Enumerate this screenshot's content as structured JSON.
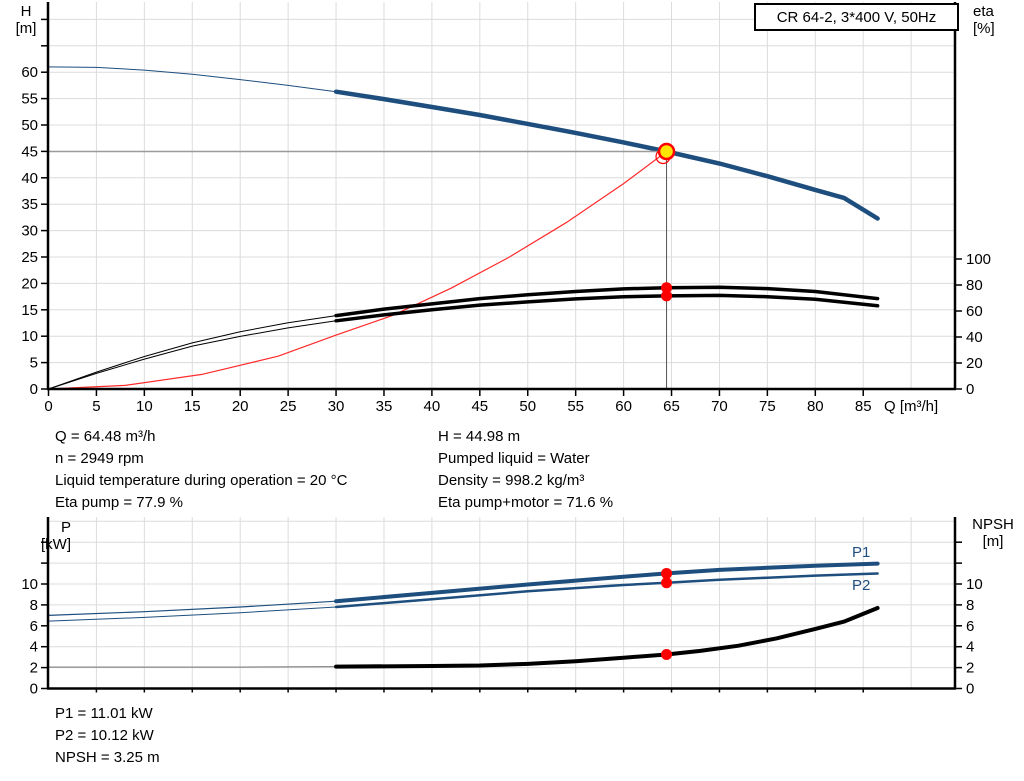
{
  "header": {
    "title": "CR 64-2, 3*400 V, 50Hz"
  },
  "colors": {
    "curve_blue": "#1d4e7e",
    "curve_black": "#000000",
    "system_red": "#ff2a2a",
    "marker_red": "#ff0000",
    "marker_yellow": "#ffe400",
    "grid": "#dcdcdc",
    "axis": "#000000",
    "ref_line": "#9b9b9b",
    "drop_line": "#555555",
    "npsh_thin": "#8a8a8a",
    "label_blue": "#1d4e7e"
  },
  "chart_data": [
    {
      "id": "head-efficiency-chart",
      "type": "line",
      "title": "CR 64-2, 3*400 V, 50Hz",
      "x": {
        "label": "Q [m³/h]",
        "tick_labels": [
          0,
          5,
          10,
          15,
          20,
          25,
          30,
          35,
          40,
          45,
          50,
          55,
          60,
          65,
          70,
          75,
          80,
          85
        ],
        "grid_max": 90,
        "range": [
          0,
          94.5
        ]
      },
      "y_left": {
        "label_lines": [
          "H",
          "[m]"
        ],
        "tick_labels": [
          0,
          5,
          10,
          15,
          20,
          25,
          30,
          35,
          40,
          45,
          50,
          55,
          60
        ],
        "extra_ticks": [
          65,
          70
        ],
        "range": [
          0,
          73
        ]
      },
      "y_right": {
        "label_lines": [
          "eta",
          "[%]"
        ],
        "tick_labels": [
          0,
          20,
          40,
          60,
          80,
          100
        ],
        "range": [
          0,
          100
        ]
      },
      "series": [
        {
          "name": "system-curve",
          "axis": "left",
          "color": "#ff2a2a",
          "thin_width": 1.2,
          "points": [
            [
              0,
              0
            ],
            [
              8,
              0.69
            ],
            [
              16,
              2.77
            ],
            [
              24,
              6.23
            ],
            [
              30,
              10.2
            ],
            [
              36,
              14.0
            ],
            [
              42,
              19.1
            ],
            [
              48,
              24.9
            ],
            [
              54,
              31.5
            ],
            [
              60,
              38.9
            ],
            [
              64.48,
              44.98
            ]
          ]
        },
        {
          "name": "qh-curve",
          "axis": "left",
          "color": "#1d4e7e",
          "thin_width": 1,
          "thick_width": 4.5,
          "thick_from": 30,
          "points": [
            [
              0,
              61
            ],
            [
              5,
              60.9
            ],
            [
              10,
              60.4
            ],
            [
              15,
              59.6
            ],
            [
              20,
              58.6
            ],
            [
              25,
              57.5
            ],
            [
              30,
              56.3
            ],
            [
              35,
              54.9
            ],
            [
              40,
              53.4
            ],
            [
              45,
              51.9
            ],
            [
              50,
              50.2
            ],
            [
              55,
              48.5
            ],
            [
              60,
              46.7
            ],
            [
              64.48,
              44.98
            ],
            [
              70,
              42.7
            ],
            [
              75,
              40.3
            ],
            [
              80,
              37.7
            ],
            [
              83,
              36.2
            ],
            [
              86.5,
              32.3
            ]
          ]
        },
        {
          "name": "eta-pump-curve",
          "axis": "right",
          "color": "#000000",
          "thin_width": 1,
          "thick_width": 3.5,
          "thick_from": 30,
          "points": [
            [
              0,
              0
            ],
            [
              5,
              13
            ],
            [
              10,
              25
            ],
            [
              15,
              35.5
            ],
            [
              20,
              44
            ],
            [
              25,
              51
            ],
            [
              30,
              56.5
            ],
            [
              35,
              61.5
            ],
            [
              40,
              65.5
            ],
            [
              45,
              69.5
            ],
            [
              50,
              72.5
            ],
            [
              55,
              75
            ],
            [
              60,
              77
            ],
            [
              64.48,
              77.9
            ],
            [
              70,
              78.2
            ],
            [
              75,
              77.2
            ],
            [
              80,
              75
            ],
            [
              86.5,
              69.5
            ]
          ]
        },
        {
          "name": "eta-pump-motor-curve",
          "axis": "right",
          "color": "#000000",
          "thin_width": 1,
          "thick_width": 3.5,
          "thick_from": 30,
          "points": [
            [
              0,
              0
            ],
            [
              5,
              12
            ],
            [
              10,
              23
            ],
            [
              15,
              33
            ],
            [
              20,
              40.5
            ],
            [
              25,
              47
            ],
            [
              30,
              52.5
            ],
            [
              35,
              57
            ],
            [
              40,
              61
            ],
            [
              45,
              64.5
            ],
            [
              50,
              67
            ],
            [
              55,
              69.3
            ],
            [
              60,
              70.9
            ],
            [
              64.48,
              71.6
            ],
            [
              70,
              72
            ],
            [
              75,
              71
            ],
            [
              80,
              69
            ],
            [
              86.5,
              64
            ]
          ]
        }
      ],
      "duty_point": {
        "q": 64.48,
        "h": 44.98,
        "eta_markers": [
          77.9,
          71.6
        ]
      }
    },
    {
      "id": "power-npsh-chart",
      "type": "line",
      "x": {
        "label": "",
        "tick_labels": [],
        "grid_max": 90,
        "range": [
          0,
          94.5
        ]
      },
      "y_left": {
        "label_lines": [
          "P",
          "[kW]"
        ],
        "tick_labels": [
          0,
          2,
          4,
          6,
          8,
          10
        ],
        "extra_ticks": [
          12,
          14
        ],
        "range": [
          0,
          16.4
        ]
      },
      "y_right": {
        "label_lines": [
          "NPSH",
          "[m]"
        ],
        "tick_labels": [
          0,
          2,
          4,
          6,
          8,
          10
        ],
        "extra_ticks": [
          12,
          14
        ],
        "range": [
          0,
          16.4
        ]
      },
      "series": [
        {
          "name": "p1-curve",
          "label": "P1",
          "axis": "left",
          "color": "#1d4e7e",
          "thin_width": 1.2,
          "thick_width": 4,
          "thick_from": 30,
          "points": [
            [
              0,
              7.0
            ],
            [
              10,
              7.35
            ],
            [
              20,
              7.8
            ],
            [
              30,
              8.35
            ],
            [
              40,
              9.15
            ],
            [
              50,
              9.95
            ],
            [
              60,
              10.7
            ],
            [
              64.48,
              11.01
            ],
            [
              70,
              11.35
            ],
            [
              75,
              11.55
            ],
            [
              80,
              11.75
            ],
            [
              86.5,
              11.95
            ]
          ]
        },
        {
          "name": "p2-curve",
          "label": "P2",
          "axis": "left",
          "color": "#1d4e7e",
          "thin_width": 1,
          "thick_width": 2.5,
          "thick_from": 30,
          "points": [
            [
              0,
              6.45
            ],
            [
              10,
              6.8
            ],
            [
              20,
              7.25
            ],
            [
              30,
              7.8
            ],
            [
              40,
              8.55
            ],
            [
              50,
              9.3
            ],
            [
              60,
              9.9
            ],
            [
              64.48,
              10.12
            ],
            [
              70,
              10.4
            ],
            [
              75,
              10.6
            ],
            [
              80,
              10.8
            ],
            [
              86.5,
              11.0
            ]
          ]
        },
        {
          "name": "npsh-curve",
          "axis": "left",
          "color": "#000000",
          "thin_width": 1.2,
          "thin_color": "#8a8a8a",
          "thick_width": 4,
          "thick_from": 30,
          "points": [
            [
              0,
              2.05
            ],
            [
              20,
              2.05
            ],
            [
              30,
              2.1
            ],
            [
              40,
              2.15
            ],
            [
              45,
              2.2
            ],
            [
              50,
              2.35
            ],
            [
              55,
              2.6
            ],
            [
              60,
              2.95
            ],
            [
              64.48,
              3.25
            ],
            [
              68,
              3.6
            ],
            [
              72,
              4.1
            ],
            [
              76,
              4.8
            ],
            [
              80,
              5.7
            ],
            [
              83,
              6.4
            ],
            [
              86.5,
              7.7
            ]
          ]
        }
      ],
      "duty_markers": {
        "q": 64.48,
        "values": [
          11.01,
          10.12,
          3.25
        ]
      }
    }
  ],
  "info": {
    "top_left": [
      "Q = 64.48 m³/h",
      "n = 2949 rpm",
      "Liquid temperature during operation = 20 °C",
      "Eta pump = 77.9 %"
    ],
    "top_right": [
      "H = 44.98 m",
      "Pumped liquid = Water",
      "Density = 998.2 kg/m³",
      "Eta pump+motor = 71.6 %"
    ],
    "bottom": [
      "P1 = 11.01 kW",
      "P2 = 10.12 kW",
      "NPSH = 3.25 m"
    ]
  }
}
